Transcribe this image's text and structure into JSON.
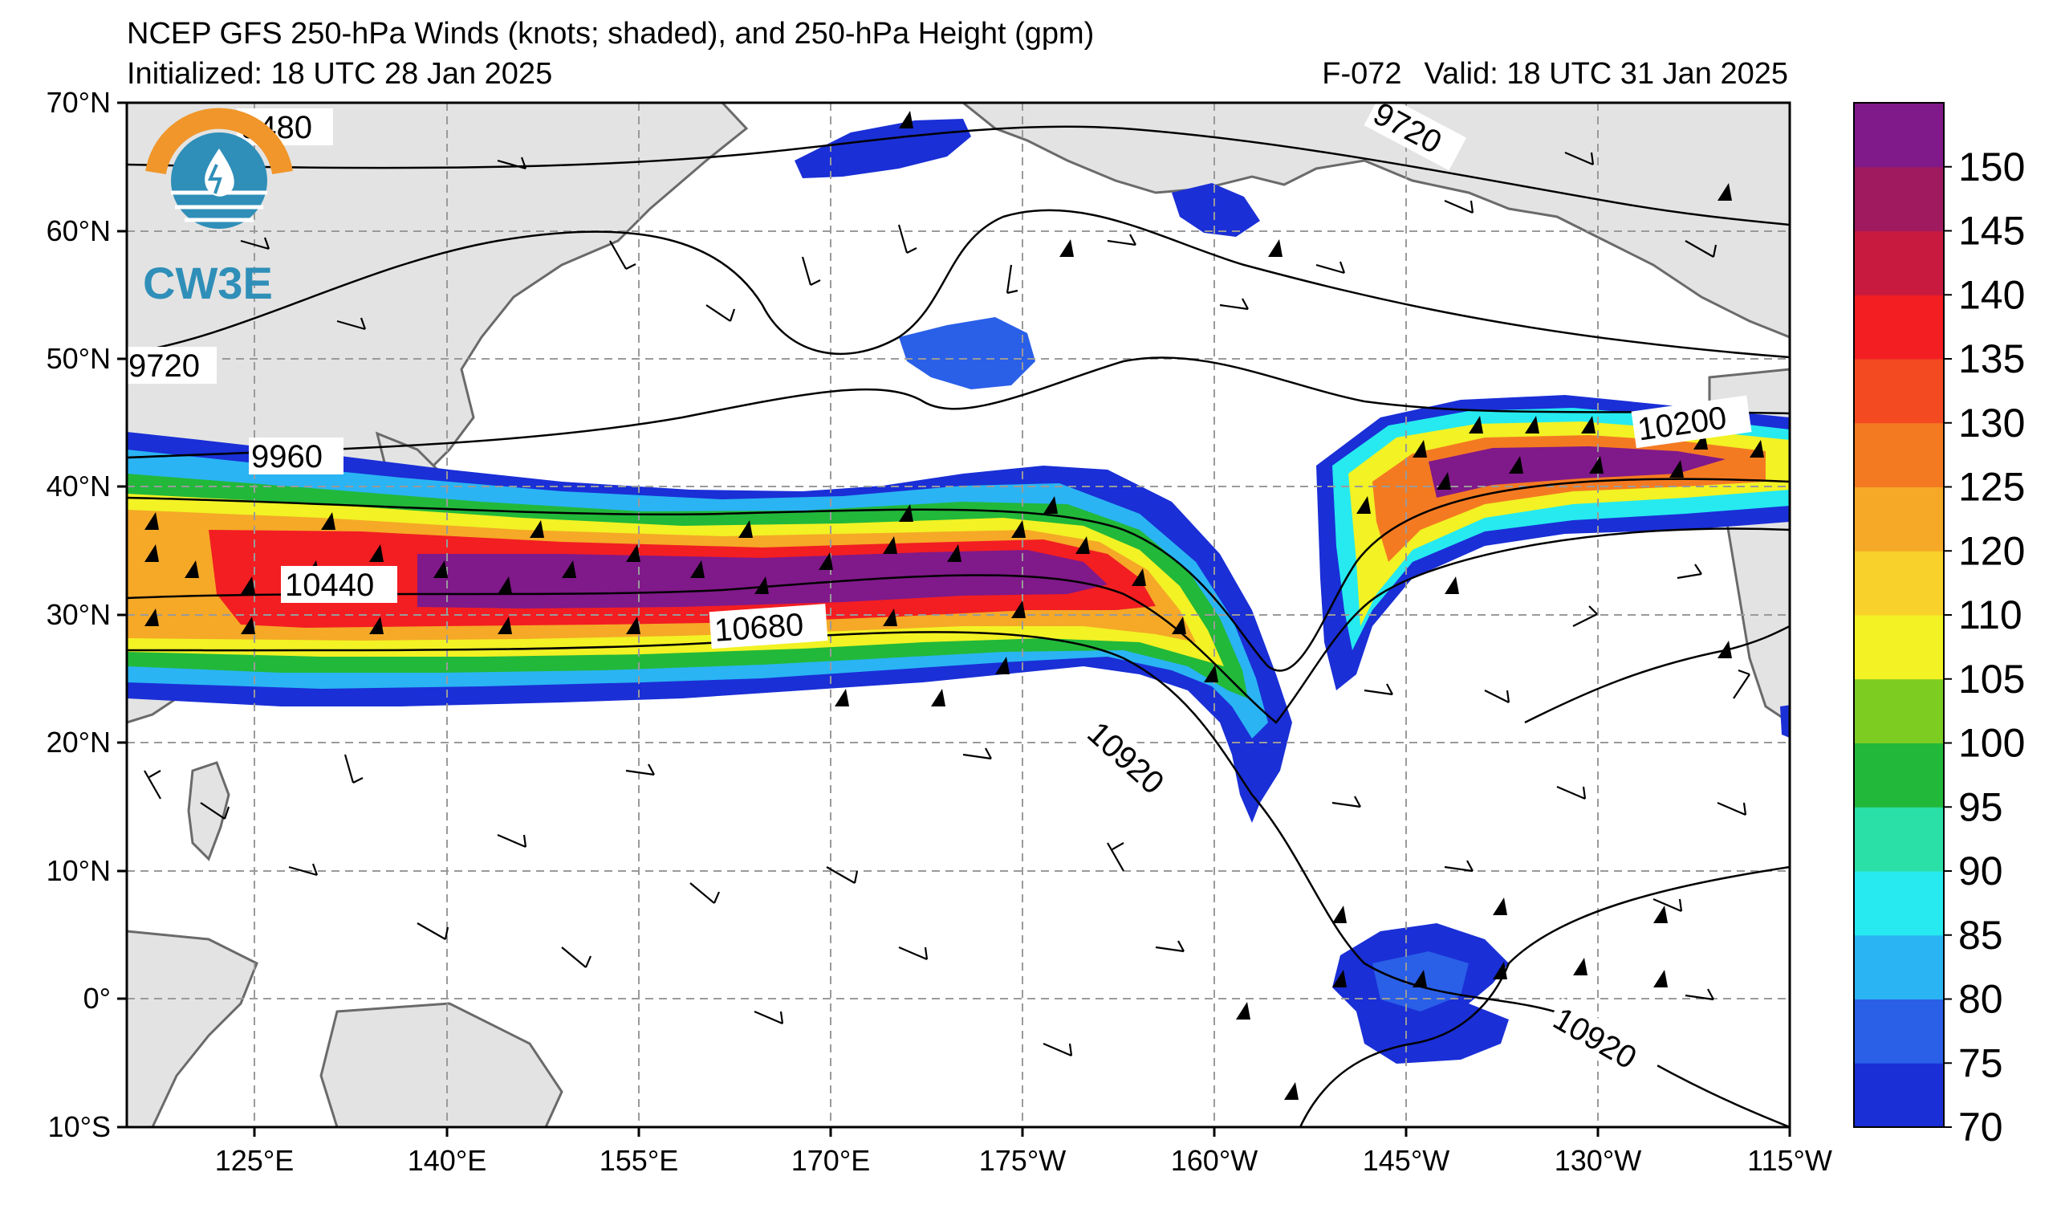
{
  "header": {
    "title": "NCEP GFS 250-hPa Winds (knots; shaded), and 250-hPa Height (gpm)",
    "initialized": "Initialized: 18 UTC 28 Jan 2025",
    "forecast_hour": "F-072",
    "valid": "Valid: 18 UTC 31 Jan 2025"
  },
  "logo": {
    "text": "CW3E",
    "icon": "cw3e-logo-icon"
  },
  "axes": {
    "lat_labels": [
      "70°N",
      "60°N",
      "50°N",
      "40°N",
      "30°N",
      "20°N",
      "10°N",
      "0°",
      "10°S"
    ],
    "lon_labels": [
      "125°E",
      "140°E",
      "155°E",
      "170°E",
      "175°W",
      "160°W",
      "145°W",
      "130°W",
      "115°W"
    ]
  },
  "contour_labels": [
    "9480",
    "9720",
    "9720",
    "9960",
    "10440",
    "10680",
    "10920",
    "10200",
    "10920"
  ],
  "colorbar": {
    "ticks": [
      "70",
      "75",
      "80",
      "85",
      "90",
      "95",
      "100",
      "105",
      "110",
      "120",
      "125",
      "130",
      "135",
      "140",
      "145",
      "150"
    ],
    "colors": [
      "#1a2fd6",
      "#2a5fe8",
      "#2ab4f4",
      "#26eaf0",
      "#2ae0a6",
      "#22b83a",
      "#7ccc22",
      "#f2f224",
      "#f8d22a",
      "#f5a927",
      "#f47a22",
      "#f44a22",
      "#f21e22",
      "#c81a3e",
      "#a01a60",
      "#80198a"
    ]
  },
  "colors": {
    "land": "#e3e3e3",
    "coast": "#6a6a6a",
    "grid": "#9a9a9a",
    "frame": "#000000"
  }
}
